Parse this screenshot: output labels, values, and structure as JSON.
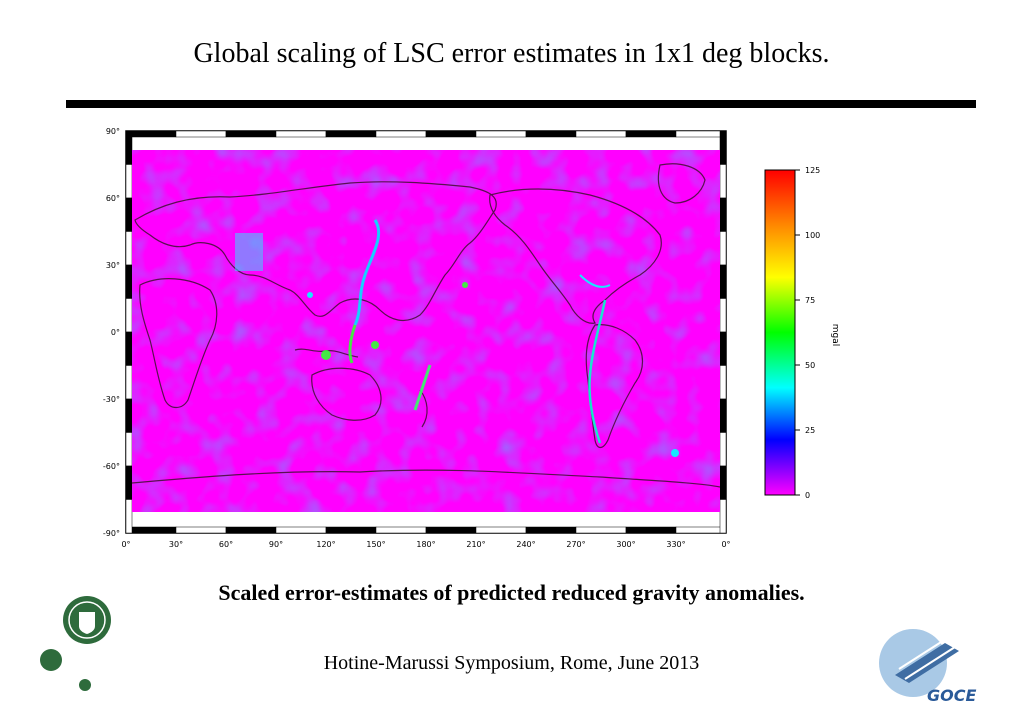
{
  "title": "Global scaling of LSC error estimates in 1x1 deg blocks.",
  "caption": "Scaled error-estimates of predicted reduced gravity anomalies.",
  "footer": "Hotine-Marussi Symposium, Rome, June 2013",
  "map": {
    "x_ticks": [
      "0°",
      "30°",
      "60°",
      "90°",
      "120°",
      "150°",
      "180°",
      "210°",
      "240°",
      "270°",
      "300°",
      "330°",
      "0°"
    ],
    "y_ticks": [
      "90°",
      "60°",
      "30°",
      "0°",
      "-30°",
      "-60°",
      "-90°"
    ],
    "colors": {
      "background": "#ff00ff",
      "low": "#cc22ee",
      "mid": "#3344ff",
      "high": "#00ffff",
      "peak": "#33ff33"
    }
  },
  "colorbar": {
    "ticks": [
      "125",
      "100",
      "75",
      "50",
      "25",
      "0"
    ],
    "label": "mgal",
    "gradient": [
      "#ff0000",
      "#ff8800",
      "#ffff00",
      "#00ff00",
      "#00ffff",
      "#0000ff",
      "#ff00ff"
    ]
  },
  "logos": {
    "left": "copenhagen-university-seal-icon",
    "right": "goce-satellite-icon",
    "right_text": "GOCE"
  }
}
